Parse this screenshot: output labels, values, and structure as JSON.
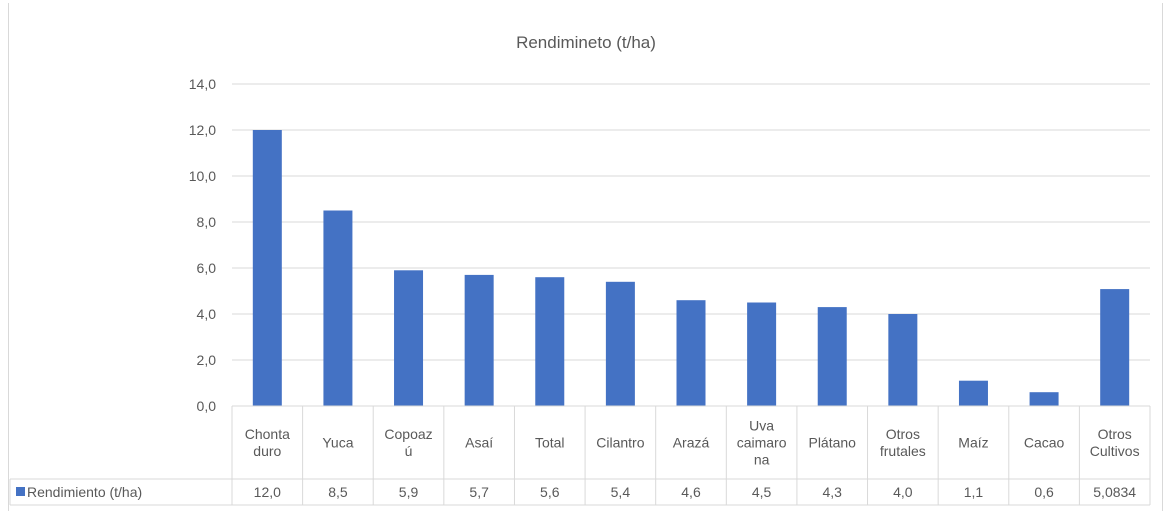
{
  "chart_data": {
    "type": "bar",
    "title": "Rendimineto (t/ha)",
    "categories": [
      "Chonta duro",
      "Yuca",
      "Copoaz ú",
      "Asaí",
      "Total",
      "Cilantro",
      "Arazá",
      "Uva caimaro na",
      "Plátano",
      "Otros frutales",
      "Maíz",
      "Cacao",
      "Otros Cultivos"
    ],
    "series": [
      {
        "name": "Rendimiento (t/ha)",
        "values": [
          12.0,
          8.5,
          5.9,
          5.7,
          5.6,
          5.4,
          4.6,
          4.5,
          4.3,
          4.0,
          1.1,
          0.6,
          5.0834
        ],
        "value_labels": [
          "12,0",
          "8,5",
          "5,9",
          "5,7",
          "5,6",
          "5,4",
          "4,6",
          "4,5",
          "4,3",
          "4,0",
          "1,1",
          "0,6",
          "5,0834"
        ],
        "color": "#4472c4"
      }
    ],
    "ylim": [
      0,
      14
    ],
    "yticks": [
      "0,0",
      "2,0",
      "4,0",
      "6,0",
      "8,0",
      "10,0",
      "12,0",
      "14,0"
    ],
    "grid": true,
    "legend": "data-table"
  }
}
